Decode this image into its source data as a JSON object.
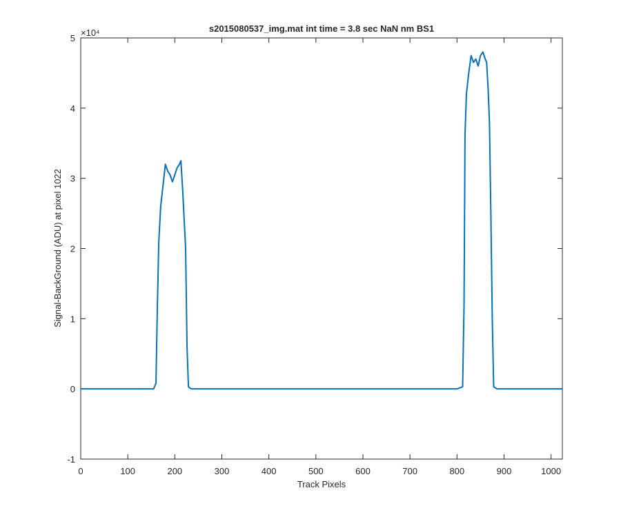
{
  "chart_data": {
    "type": "line",
    "title": "s2015080537_img.mat int time = 3.8 sec  NaN nm BS1",
    "x_label": "Track Pixels",
    "y_label": "Signal-BackGround (ADU) at pixel 1022",
    "y_scale_label": "×10⁴",
    "color": "#0072bd",
    "x": [
      0,
      100,
      155,
      160,
      163,
      166,
      170,
      175,
      180,
      185,
      190,
      195,
      200,
      205,
      210,
      213,
      217,
      220,
      223,
      226,
      229,
      235,
      400,
      600,
      800,
      812,
      815,
      817,
      820,
      825,
      830,
      835,
      840,
      845,
      850,
      855,
      860,
      863,
      866,
      869,
      872,
      875,
      878,
      885,
      1000,
      1023
    ],
    "values": [
      0,
      0,
      0,
      800,
      12000,
      21000,
      26000,
      29000,
      32000,
      31000,
      30500,
      29500,
      30500,
      31500,
      32000,
      32500,
      28000,
      24000,
      20000,
      6000,
      300,
      0,
      0,
      0,
      0,
      300,
      12000,
      36000,
      42000,
      45000,
      47500,
      46500,
      47000,
      46000,
      47500,
      48000,
      47000,
      46500,
      43000,
      38000,
      25000,
      10000,
      300,
      0,
      0,
      0
    ],
    "xlim": [
      0,
      1024
    ],
    "xticks": [
      0,
      100,
      200,
      300,
      400,
      500,
      600,
      700,
      800,
      900,
      1000
    ],
    "ylim": [
      -10000,
      50000
    ],
    "yticks": [
      {
        "value": -10000,
        "label": "-1"
      },
      {
        "value": 0,
        "label": "0"
      },
      {
        "value": 10000,
        "label": "1"
      },
      {
        "value": 20000,
        "label": "2"
      },
      {
        "value": 30000,
        "label": "3"
      },
      {
        "value": 40000,
        "label": "4"
      },
      {
        "value": 50000,
        "label": "5"
      }
    ],
    "grid": false
  }
}
